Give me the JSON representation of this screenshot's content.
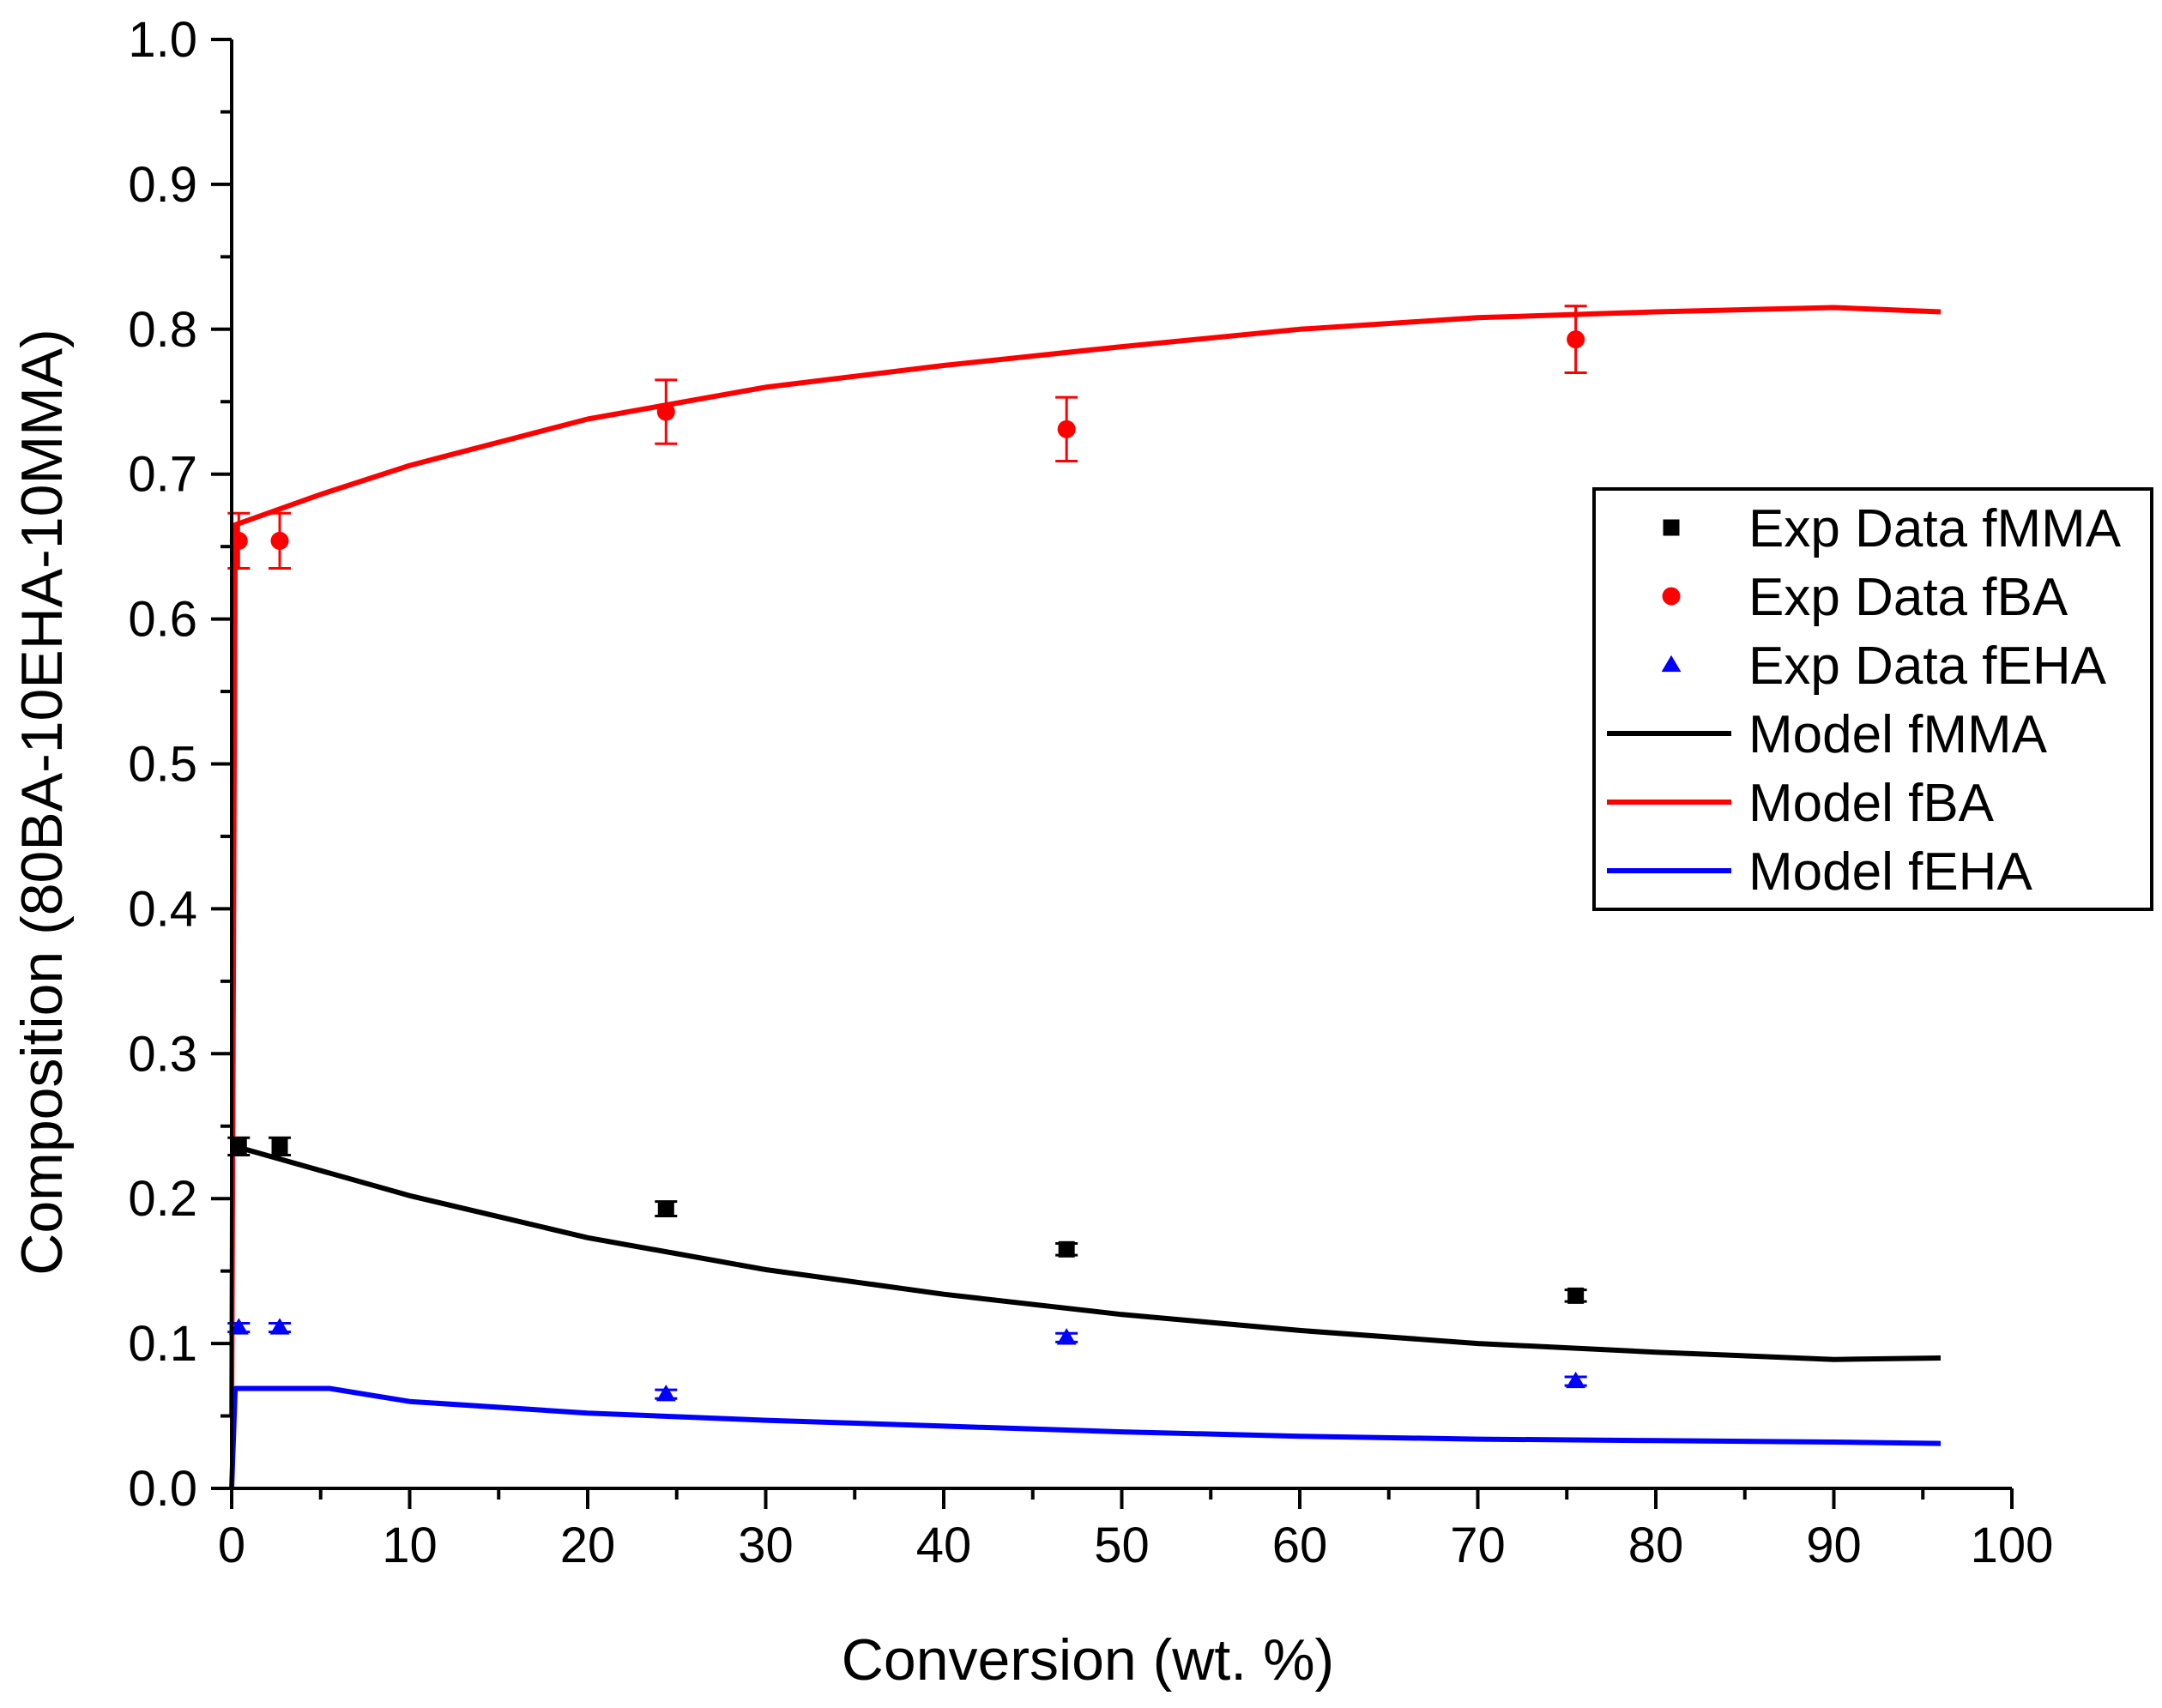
{
  "chart_data": {
    "type": "scatter",
    "title": "",
    "xlabel": "Conversion (wt. %)",
    "ylabel": "Composition (80BA-10EHA-10MMA)",
    "xlim": [
      0,
      100
    ],
    "ylim": [
      0.0,
      1.0
    ],
    "x_ticks": [
      "0",
      "10",
      "20",
      "30",
      "40",
      "50",
      "60",
      "70",
      "80",
      "90",
      "100"
    ],
    "y_ticks": [
      "0.0",
      "0.1",
      "0.2",
      "0.3",
      "0.4",
      "0.5",
      "0.6",
      "0.7",
      "0.8",
      "0.9",
      "1.0"
    ],
    "grid": false,
    "legend_position": "right",
    "series": [
      {
        "name": "Exp Data fMMA",
        "kind": "points",
        "marker": "square",
        "color": "#000000",
        "x": [
          0.4,
          2.7,
          24.4,
          46.9,
          75.5
        ],
        "y": [
          0.236,
          0.236,
          0.193,
          0.165,
          0.133
        ],
        "err": [
          0.006,
          0.006,
          0.005,
          0.004,
          0.004
        ]
      },
      {
        "name": "Exp Data fBA",
        "kind": "points",
        "marker": "circle",
        "color": "#ff0000",
        "x": [
          0.4,
          2.7,
          24.4,
          46.9,
          75.5
        ],
        "y": [
          0.654,
          0.654,
          0.743,
          0.731,
          0.793
        ],
        "err": [
          0.019,
          0.019,
          0.022,
          0.022,
          0.023
        ]
      },
      {
        "name": "Exp Data fEHA",
        "kind": "points",
        "marker": "triangle",
        "color": "#0000ff",
        "x": [
          0.4,
          2.7,
          24.4,
          46.9,
          75.5
        ],
        "y": [
          0.111,
          0.111,
          0.065,
          0.104,
          0.074
        ],
        "err": [
          0.003,
          0.003,
          0.003,
          0.003,
          0.003
        ]
      },
      {
        "name": "Model fMMA",
        "kind": "line",
        "color": "#000000",
        "x": [
          0.2,
          10,
          20,
          30,
          40,
          50,
          60,
          70,
          80,
          90,
          96
        ],
        "y": [
          0.236,
          0.202,
          0.173,
          0.151,
          0.134,
          0.12,
          0.109,
          0.1,
          0.094,
          0.089,
          0.09
        ]
      },
      {
        "name": "Model fBA",
        "kind": "line",
        "color": "#ff0000",
        "x": [
          0.0,
          0.2,
          5,
          10,
          20,
          30,
          40,
          50,
          60,
          70,
          80,
          90,
          96
        ],
        "y": [
          0.05,
          0.665,
          0.686,
          0.706,
          0.738,
          0.76,
          0.775,
          0.788,
          0.8,
          0.808,
          0.812,
          0.815,
          0.812
        ]
      },
      {
        "name": "Model fEHA",
        "kind": "line",
        "color": "#0000ff",
        "x": [
          0.0,
          0.2,
          5.5,
          10,
          20,
          30,
          40,
          50,
          60,
          70,
          80,
          90,
          96
        ],
        "y": [
          0.0,
          0.069,
          0.069,
          0.06,
          0.052,
          0.047,
          0.043,
          0.039,
          0.036,
          0.034,
          0.033,
          0.032,
          0.031
        ]
      }
    ]
  }
}
